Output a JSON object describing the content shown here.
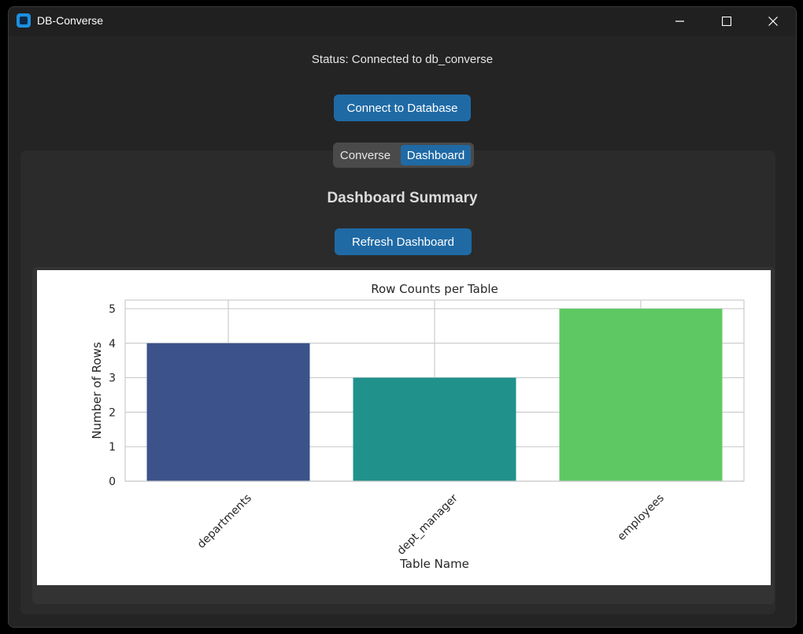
{
  "window": {
    "title": "DB-Converse",
    "icon": "app-icon",
    "controls": [
      "minimize-icon",
      "maximize-icon",
      "close-icon"
    ]
  },
  "status": {
    "text": "Status: Connected to db_converse"
  },
  "buttons": {
    "connect": "Connect to Database",
    "refresh": "Refresh Dashboard"
  },
  "tabs": [
    {
      "label": "Converse",
      "active": false
    },
    {
      "label": "Dashboard",
      "active": true
    }
  ],
  "dashboard": {
    "title": "Dashboard Summary"
  },
  "colors": {
    "accent": "#1f6aa5",
    "background": "#242424",
    "panel": "#2b2b2b",
    "bars": [
      "#3b528b",
      "#21918c",
      "#5ec962"
    ]
  },
  "chart_data": {
    "type": "bar",
    "title": "Row Counts per Table",
    "xlabel": "Table Name",
    "ylabel": "Number of Rows",
    "categories": [
      "departments",
      "dept_manager",
      "employees"
    ],
    "values": [
      4,
      3,
      5
    ],
    "ylim": [
      0,
      5.25
    ],
    "yticks": [
      "0",
      "1",
      "2",
      "3",
      "4",
      "5"
    ],
    "grid": true
  }
}
